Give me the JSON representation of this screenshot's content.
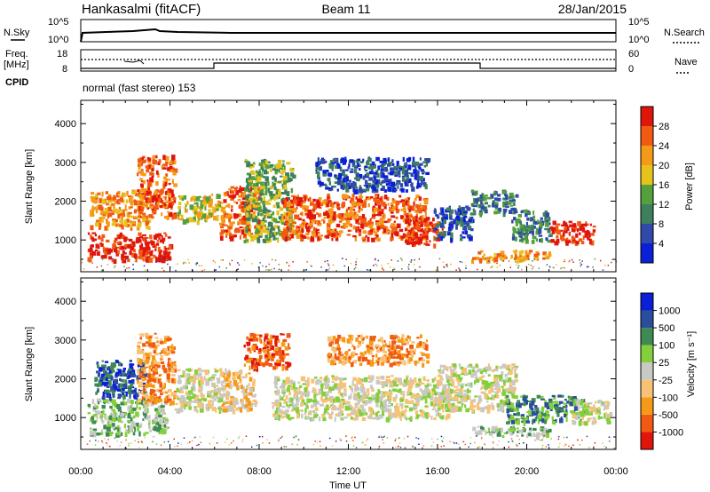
{
  "header": {
    "station": "Hankasalmi (fitACF)",
    "beam": "Beam 11",
    "date": "28/Jan/2015"
  },
  "noise_panel": {
    "left_label": "N.Sky",
    "right_label": "N.Search",
    "left_ticks": [
      "10^5",
      "10^0"
    ],
    "right_ticks": [
      "10^5",
      "10^0"
    ]
  },
  "freq_panel": {
    "left_label_line1": "Freq.",
    "left_label_line2": "[MHz]",
    "left_ticks": [
      "18",
      "8"
    ],
    "right_label": "Nave",
    "right_ticks": [
      "60",
      "0"
    ],
    "cpid_label": "CPID",
    "cpid_text": "normal (fast stereo) 153"
  },
  "colors": {
    "power_scale": [
      "#0a1fd6",
      "#2f4aa8",
      "#3e7f5c",
      "#54a03c",
      "#e6c21a",
      "#f59a18",
      "#f05a12",
      "#e0160c"
    ],
    "velocity_scale": [
      "#e0160c",
      "#f05a12",
      "#f59a18",
      "#f7c275",
      "#c8c8c4",
      "#84cf3c",
      "#3f8a52",
      "#2a4d9c",
      "#0a1fd6"
    ]
  },
  "power_colorbar": {
    "label": "Power [dB]",
    "ticks": [
      "4",
      "8",
      "12",
      "16",
      "20",
      "24",
      "28"
    ]
  },
  "velocity_colorbar": {
    "label": "Velocity [m s⁻¹]",
    "ticks": [
      "-1000",
      "-500",
      "-100",
      "-25",
      "25",
      "100",
      "500",
      "1000"
    ]
  },
  "x_axis": {
    "label": "Time UT",
    "ticks": [
      "00:00",
      "04:00",
      "08:00",
      "12:00",
      "16:00",
      "20:00",
      "00:00"
    ]
  },
  "chart_data": [
    {
      "type": "heatmap",
      "title": "Power",
      "ylabel": "Slant Range [km]",
      "xlabel": "",
      "y_ticks": [
        1000,
        2000,
        3000,
        4000
      ],
      "ylim": [
        180,
        4600
      ],
      "xlim_hours": [
        0,
        24
      ],
      "blobs": [
        {
          "t0": 0.3,
          "t1": 4.0,
          "r0": 500,
          "r1": 1200,
          "level": 7
        },
        {
          "t0": 0.4,
          "t1": 3.0,
          "r0": 1350,
          "r1": 2300,
          "level": 5
        },
        {
          "t0": 2.5,
          "t1": 4.2,
          "r0": 1600,
          "r1": 3200,
          "level": 6
        },
        {
          "t0": 4.3,
          "t1": 6.3,
          "r0": 1500,
          "r1": 2200,
          "level": 4
        },
        {
          "t0": 6.2,
          "t1": 8.0,
          "r0": 1100,
          "r1": 2400,
          "level": 6
        },
        {
          "t0": 7.3,
          "t1": 9.5,
          "r0": 1000,
          "r1": 3100,
          "level": 3
        },
        {
          "t0": 9.0,
          "t1": 15.5,
          "r0": 1050,
          "r1": 2200,
          "level": 6
        },
        {
          "t0": 10.5,
          "t1": 15.5,
          "r0": 2300,
          "r1": 3150,
          "level": 1
        },
        {
          "t0": 14.5,
          "t1": 16.2,
          "r0": 900,
          "r1": 1600,
          "level": 7
        },
        {
          "t0": 15.8,
          "t1": 17.5,
          "r0": 1050,
          "r1": 1900,
          "level": 1
        },
        {
          "t0": 17.5,
          "t1": 19.5,
          "r0": 1700,
          "r1": 2300,
          "level": 2
        },
        {
          "t0": 17.5,
          "t1": 21.0,
          "r0": 500,
          "r1": 750,
          "level": 5
        },
        {
          "t0": 19.3,
          "t1": 21.0,
          "r0": 1000,
          "r1": 1800,
          "level": 2
        },
        {
          "t0": 21.0,
          "t1": 23.0,
          "r0": 950,
          "r1": 1500,
          "level": 7
        }
      ]
    },
    {
      "type": "heatmap",
      "title": "Velocity",
      "ylabel": "Slant Range [km]",
      "xlabel": "Time UT",
      "y_ticks": [
        1000,
        2000,
        3000,
        4000
      ],
      "ylim": [
        180,
        4600
      ],
      "xlim_hours": [
        0,
        24
      ],
      "blobs": [
        {
          "t0": 0.3,
          "t1": 3.8,
          "r0": 600,
          "r1": 1500,
          "level": 5
        },
        {
          "t0": 0.6,
          "t1": 2.8,
          "r0": 1500,
          "r1": 2500,
          "level": 7
        },
        {
          "t0": 2.5,
          "t1": 4.2,
          "r0": 1400,
          "r1": 3200,
          "level": 2
        },
        {
          "t0": 4.2,
          "t1": 6.3,
          "r0": 1200,
          "r1": 2300,
          "level": 4
        },
        {
          "t0": 6.2,
          "t1": 7.8,
          "r0": 1200,
          "r1": 2300,
          "level": 3
        },
        {
          "t0": 7.3,
          "t1": 9.3,
          "r0": 2300,
          "r1": 3200,
          "level": 1
        },
        {
          "t0": 8.5,
          "t1": 16.5,
          "r0": 1000,
          "r1": 2100,
          "level": 4
        },
        {
          "t0": 11.0,
          "t1": 15.5,
          "r0": 2400,
          "r1": 3150,
          "level": 2
        },
        {
          "t0": 16.0,
          "t1": 19.5,
          "r0": 1200,
          "r1": 2400,
          "level": 4
        },
        {
          "t0": 17.5,
          "t1": 21.0,
          "r0": 550,
          "r1": 800,
          "level": 5
        },
        {
          "t0": 19.0,
          "t1": 22.5,
          "r0": 900,
          "r1": 1600,
          "level": 6
        },
        {
          "t0": 22.0,
          "t1": 23.7,
          "r0": 900,
          "r1": 1500,
          "level": 4
        }
      ]
    }
  ]
}
